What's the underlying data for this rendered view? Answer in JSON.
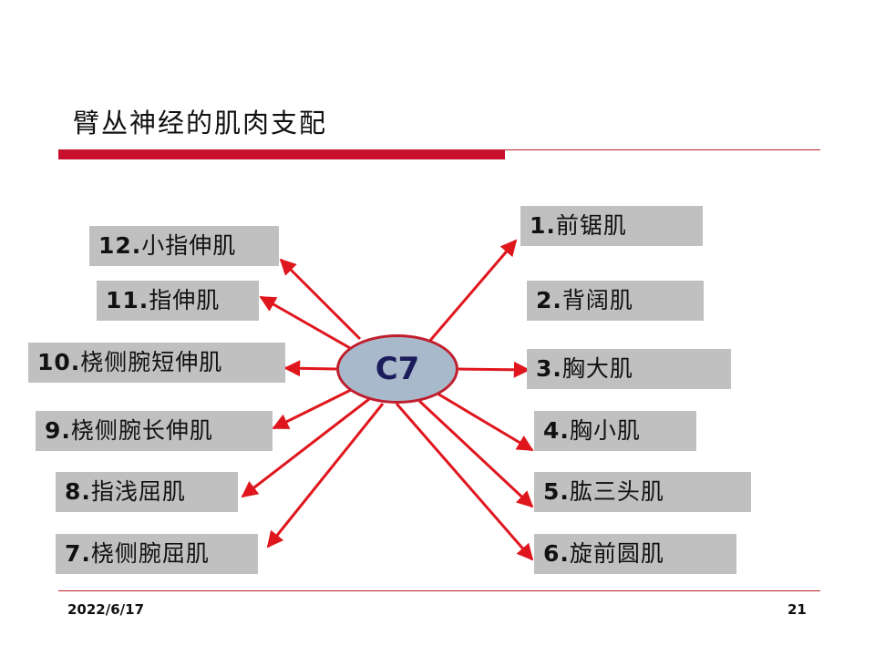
{
  "slide": {
    "title": "臂丛神经的肌肉支配",
    "center": "C7",
    "date": "2022/6/17",
    "page_number": "21",
    "accent_color": "#c8102e",
    "box_color": "#c0c0c0",
    "hub_color": "#a9b9cc"
  },
  "nodes": [
    {
      "num": "1.",
      "label": "前锯肌",
      "arrow": true
    },
    {
      "num": "2.",
      "label": "背阔肌",
      "arrow": false
    },
    {
      "num": "3.",
      "label": "胸大肌",
      "arrow": true
    },
    {
      "num": "4.",
      "label": "胸小肌",
      "arrow": true
    },
    {
      "num": "5.",
      "label": "肱三头肌",
      "arrow": true
    },
    {
      "num": "6.",
      "label": "旋前圆肌",
      "arrow": true
    },
    {
      "num": "7.",
      "label": "桡侧腕屈肌",
      "arrow": true
    },
    {
      "num": "8.",
      "label": "指浅屈肌",
      "arrow": true
    },
    {
      "num": "9.",
      "label": "桡侧腕长伸肌",
      "arrow": true
    },
    {
      "num": "10.",
      "label": "桡侧腕短伸肌",
      "arrow": true
    },
    {
      "num": "11.",
      "label": "指伸肌",
      "arrow": true
    },
    {
      "num": "12.",
      "label": "小指伸肌",
      "arrow": true
    }
  ]
}
